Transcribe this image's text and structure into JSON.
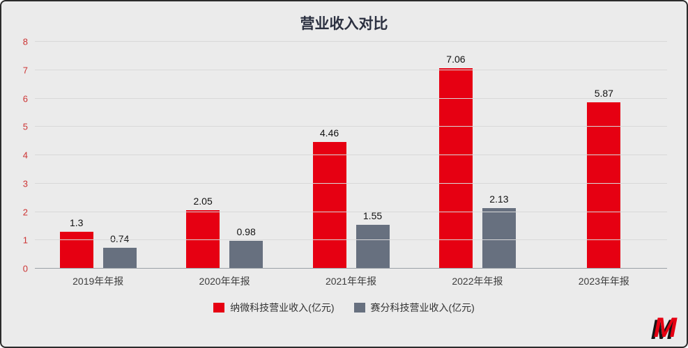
{
  "title": "营业收入对比",
  "chart_data": {
    "type": "bar",
    "title": "营业收入对比",
    "categories": [
      "2019年年报",
      "2020年年报",
      "2021年年报",
      "2022年年报",
      "2023年年报"
    ],
    "series": [
      {
        "name": "纳微科技营业收入(亿元)",
        "color": "#e60012",
        "values": [
          1.3,
          2.05,
          4.46,
          7.06,
          5.87
        ]
      },
      {
        "name": "赛分科技营业收入(亿元)",
        "color": "#67707f",
        "values": [
          0.74,
          0.98,
          1.55,
          2.13,
          null
        ]
      }
    ],
    "xlabel": "",
    "ylabel": "",
    "ylim": [
      0,
      8
    ],
    "yticks": [
      0,
      1,
      2,
      3,
      4,
      5,
      6,
      7,
      8
    ],
    "grid": true,
    "legend_position": "bottom"
  },
  "colors": {
    "accent_red": "#e60012",
    "series_gray": "#67707f",
    "ytick_label": "#cc3333",
    "background": "#ebebeb",
    "border": "#2b2b2b"
  },
  "logo": {
    "letter": "M"
  }
}
